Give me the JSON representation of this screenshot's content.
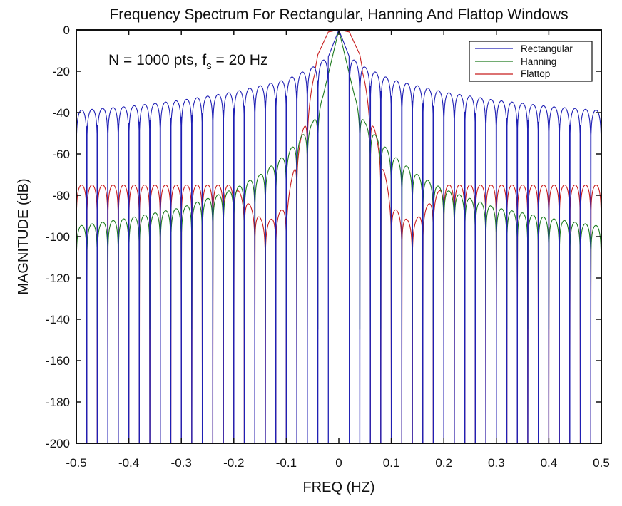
{
  "chart_data": {
    "type": "line",
    "title": "Frequency Spectrum For Rectangular, Hanning And Flattop Windows",
    "xlabel": "FREQ (HZ)",
    "ylabel": "MAGNITUDE (dB)",
    "xlim": [
      -0.5,
      0.5
    ],
    "ylim": [
      -200,
      0
    ],
    "x_ticks": [
      -0.5,
      -0.4,
      -0.3,
      -0.2,
      -0.1,
      0,
      0.1,
      0.2,
      0.3,
      0.4,
      0.5
    ],
    "x_tick_labels": [
      "-0.5",
      "-0.4",
      "-0.3",
      "-0.2",
      "-0.1",
      "0",
      "0.1",
      "0.2",
      "0.3",
      "0.4",
      "0.5"
    ],
    "y_ticks": [
      0,
      -20,
      -40,
      -60,
      -80,
      -100,
      -120,
      -140,
      -160,
      -180,
      -200
    ],
    "y_tick_labels": [
      "0",
      "-20",
      "-40",
      "-60",
      "-80",
      "-100",
      "-120",
      "-140",
      "-160",
      "-180",
      "-200"
    ],
    "grid": false,
    "legend_position": "top-right",
    "annotation": {
      "main": "N = 1000 pts, f",
      "sub": "s",
      "tail": " = 20 Hz"
    },
    "series": [
      {
        "name": "Rectangular",
        "color": "#1f1fb4",
        "x": [
          -0.5,
          -0.4,
          -0.3,
          -0.2,
          -0.1,
          -0.05,
          -0.02,
          0,
          0.02,
          0.05,
          0.1,
          0.2,
          0.3,
          0.4,
          0.5
        ],
        "y": [
          -39,
          -37,
          -34,
          -30,
          -24,
          -18,
          -13,
          0,
          -13,
          -18,
          -24,
          -30,
          -34,
          -37,
          -39
        ],
        "sidelobe_spacing_hz": 0.02,
        "null_floor_db": -200
      },
      {
        "name": "Hanning",
        "color": "#1e7b1e",
        "x": [
          -0.5,
          -0.4,
          -0.3,
          -0.2,
          -0.15,
          -0.1,
          -0.05,
          -0.03,
          0,
          0.03,
          0.05,
          0.1,
          0.15,
          0.2,
          0.3,
          0.4,
          0.5
        ],
        "y": [
          -95,
          -91,
          -86,
          -77,
          -70,
          -60,
          -45,
          -32,
          0,
          -32,
          -45,
          -60,
          -70,
          -77,
          -86,
          -91,
          -95
        ],
        "sidelobe_spacing_hz": 0.02,
        "null_floor_db": -145
      },
      {
        "name": "Flattop",
        "color": "#c81e1e",
        "x": [
          -0.5,
          -0.4,
          -0.3,
          -0.2,
          -0.14,
          -0.1,
          -0.08,
          -0.06,
          -0.04,
          -0.02,
          0,
          0.02,
          0.04,
          0.06,
          0.08,
          0.1,
          0.14,
          0.2,
          0.3,
          0.4,
          0.5
        ],
        "y": [
          -75,
          -75,
          -75,
          -75,
          -94,
          -85,
          -60,
          -40,
          -12,
          -1,
          0,
          -1,
          -12,
          -40,
          -60,
          -85,
          -94,
          -75,
          -75,
          -75,
          -75
        ],
        "sidelobe_spacing_hz": 0.02,
        "null_floor_db": -200
      }
    ]
  }
}
